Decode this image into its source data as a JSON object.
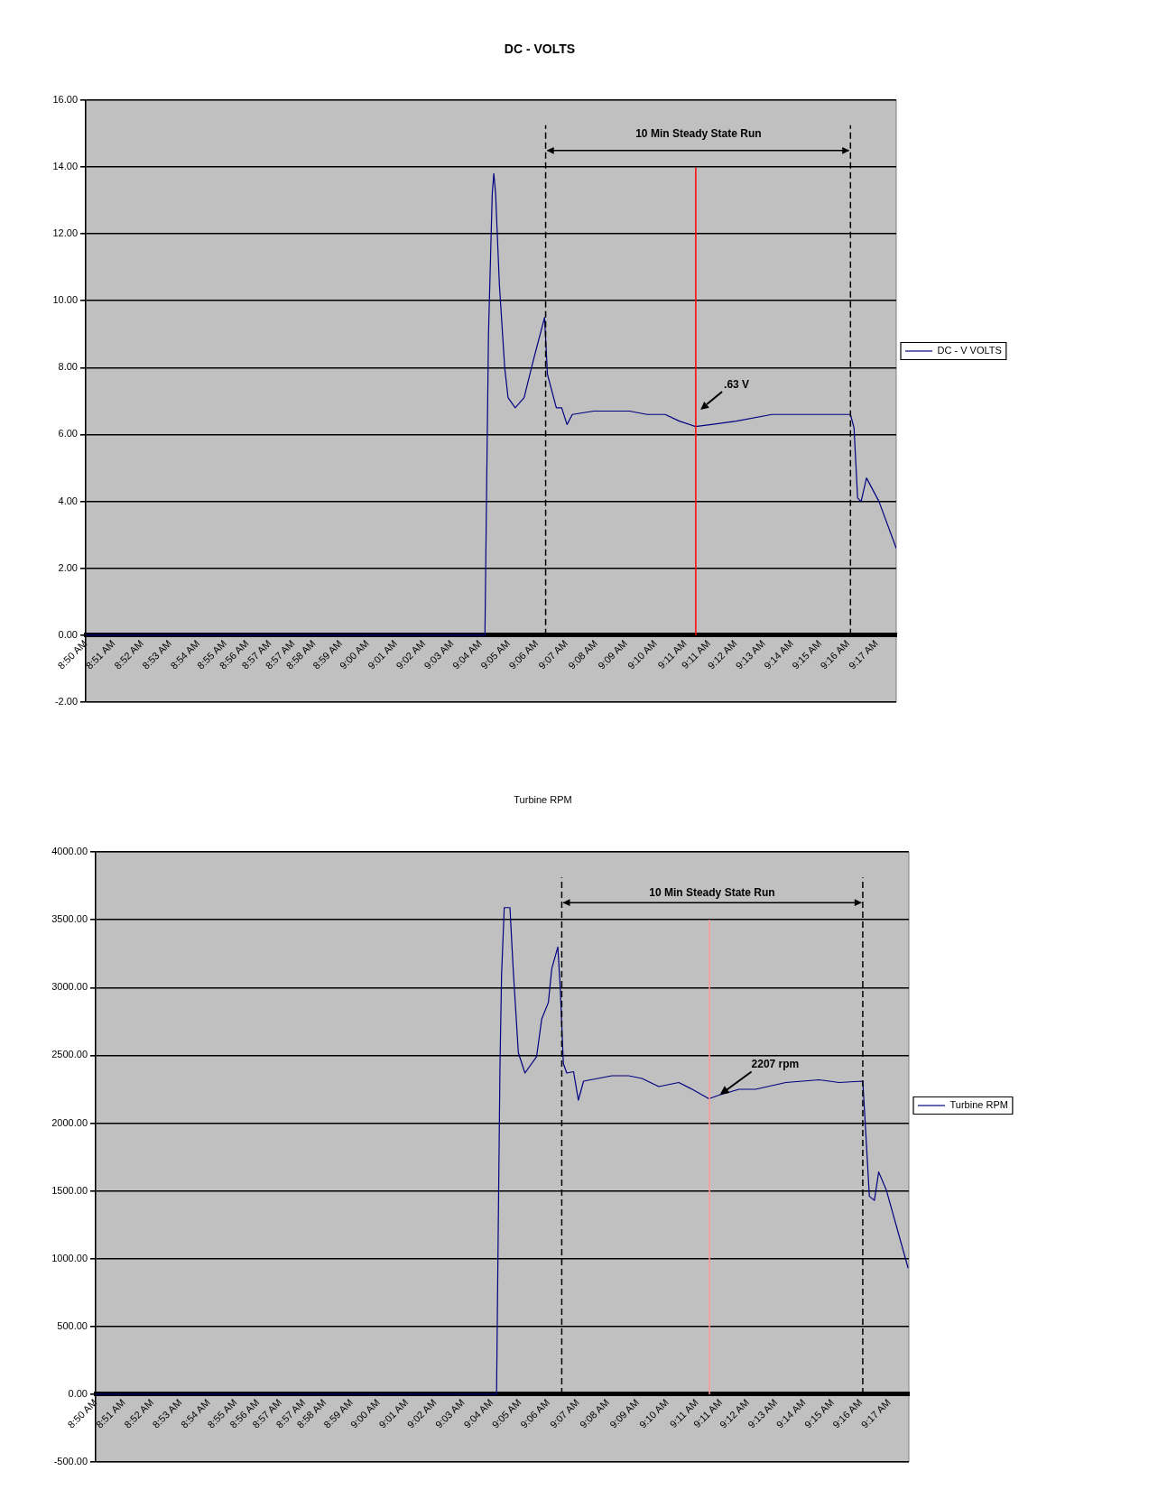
{
  "chart_data": [
    {
      "type": "line",
      "title": "DC - VOLTS",
      "x": [
        8.84,
        9.0642,
        9.0652,
        9.0662,
        9.0683,
        9.0692,
        9.0702,
        9.0723,
        9.0753,
        9.0772,
        9.0812,
        9.0862,
        9.0913,
        9.0977,
        9.0993,
        9.1043,
        9.1073,
        9.1103,
        9.1133,
        9.1253,
        9.1353,
        9.1453,
        9.1553,
        9.1654,
        9.1734,
        9.1824,
        9.1914,
        9.2054,
        9.2254,
        9.2455,
        9.2695,
        9.2715,
        9.2735,
        9.2755,
        9.2785,
        9.2855,
        9.2952
      ],
      "series": [
        {
          "name": "DC - V VOLTS",
          "color": "#000080",
          "values": [
            0,
            0,
            4.6,
            9.0,
            13.2,
            13.8,
            13.2,
            10.5,
            8.0,
            7.1,
            6.8,
            7.1,
            8.2,
            9.5,
            7.8,
            6.8,
            6.8,
            6.3,
            6.6,
            6.7,
            6.7,
            6.7,
            6.6,
            6.6,
            6.4,
            6.24,
            6.3,
            6.4,
            6.6,
            6.6,
            6.6,
            6.2,
            4.1,
            4.0,
            4.7,
            4.0,
            2.6
          ]
        }
      ],
      "xlim": [
        8.84,
        9.2952
      ],
      "xticks": [
        {
          "value": 8.84,
          "label": "8:50 AM"
        },
        {
          "value": 8.8558,
          "label": "8:51 AM"
        },
        {
          "value": 8.8717,
          "label": "8:52 AM"
        },
        {
          "value": 8.8875,
          "label": "8:53 AM"
        },
        {
          "value": 8.9033,
          "label": "8:54 AM"
        },
        {
          "value": 8.9183,
          "label": "8:55 AM"
        },
        {
          "value": 8.9308,
          "label": "8:56 AM"
        },
        {
          "value": 8.9434,
          "label": "8:57 AM"
        },
        {
          "value": 8.9566,
          "label": "8:57 AM"
        },
        {
          "value": 8.9683,
          "label": "8:58 AM"
        },
        {
          "value": 8.9833,
          "label": "8:59 AM"
        },
        {
          "value": 8.9983,
          "label": "9:00 AM"
        },
        {
          "value": 9.0142,
          "label": "9:01 AM"
        },
        {
          "value": 9.03,
          "label": "9:02 AM"
        },
        {
          "value": 9.0458,
          "label": "9:03 AM"
        },
        {
          "value": 9.0617,
          "label": "9:04 AM"
        },
        {
          "value": 9.0775,
          "label": "9:05 AM"
        },
        {
          "value": 9.0934,
          "label": "9:06 AM"
        },
        {
          "value": 9.11,
          "label": "9:07 AM"
        },
        {
          "value": 9.1267,
          "label": "9:08 AM"
        },
        {
          "value": 9.1434,
          "label": "9:09 AM"
        },
        {
          "value": 9.16,
          "label": "9:10 AM"
        },
        {
          "value": 9.1767,
          "label": "9:11 AM"
        },
        {
          "value": 9.19,
          "label": "9:11 AM"
        },
        {
          "value": 9.205,
          "label": "9:12 AM"
        },
        {
          "value": 9.2208,
          "label": "9:13 AM"
        },
        {
          "value": 9.2367,
          "label": "9:14 AM"
        },
        {
          "value": 9.2525,
          "label": "9:15 AM"
        },
        {
          "value": 9.2683,
          "label": "9:16 AM"
        },
        {
          "value": 9.2842,
          "label": "9:17 AM"
        }
      ],
      "ylim": [
        -2,
        16
      ],
      "yticks": [
        {
          "value": -2,
          "label": "-2.00"
        },
        {
          "value": 0,
          "label": "0.00"
        },
        {
          "value": 2,
          "label": "2.00"
        },
        {
          "value": 4,
          "label": "4.00"
        },
        {
          "value": 6,
          "label": "6.00"
        },
        {
          "value": 8,
          "label": "8.00"
        },
        {
          "value": 10,
          "label": "10.00"
        },
        {
          "value": 12,
          "label": "12.00"
        },
        {
          "value": 14,
          "label": "14.00"
        },
        {
          "value": 16,
          "label": "16.00"
        }
      ],
      "grid": "y",
      "legend": "right",
      "ref_lines": [
        {
          "axis": "x",
          "value": 9.0983,
          "color": "#000000",
          "line_style": "dashed"
        },
        {
          "axis": "x",
          "value": 9.2695,
          "color": "#000000",
          "line_style": "dashed"
        },
        {
          "axis": "x",
          "value": 9.1826,
          "color": "#ff0000",
          "line_style": "solid"
        }
      ],
      "annotations": [
        "10 Min Steady State Run",
        ".63 V"
      ]
    },
    {
      "type": "line",
      "title": "Turbine RPM",
      "x": [
        8.84,
        9.0644,
        9.0653,
        9.0663,
        9.0672,
        9.0687,
        9.0719,
        9.0737,
        9.0766,
        9.0803,
        9.0868,
        9.0897,
        9.0934,
        9.0953,
        9.0987,
        9.1,
        9.1018,
        9.1037,
        9.1075,
        9.1102,
        9.1131,
        9.129,
        9.1383,
        9.1458,
        9.1552,
        9.1664,
        9.1739,
        9.1833,
        9.1889,
        9.2001,
        9.2094,
        9.2263,
        9.245,
        9.2562,
        9.2694,
        9.2712,
        9.2731,
        9.2759,
        9.2783,
        9.2825,
        9.2948
      ],
      "series": [
        {
          "name": "Turbine RPM",
          "color": "#000080",
          "values": [
            0,
            0,
            1160,
            2400,
            3090,
            3590,
            3590,
            3140,
            2520,
            2370,
            2490,
            2770,
            2890,
            3140,
            3300,
            3010,
            2440,
            2370,
            2380,
            2170,
            2310,
            2350,
            2350,
            2330,
            2270,
            2300,
            2250,
            2180,
            2207,
            2250,
            2250,
            2300,
            2320,
            2300,
            2310,
            1900,
            1460,
            1430,
            1640,
            1510,
            930
          ]
        }
      ],
      "xlim": [
        8.84,
        9.2952
      ],
      "xticks": [
        {
          "value": 8.84,
          "label": "8:50 AM"
        },
        {
          "value": 8.8558,
          "label": "8:51 AM"
        },
        {
          "value": 8.8717,
          "label": "8:52 AM"
        },
        {
          "value": 8.8875,
          "label": "8:53 AM"
        },
        {
          "value": 8.9033,
          "label": "8:54 AM"
        },
        {
          "value": 8.9183,
          "label": "8:55 AM"
        },
        {
          "value": 8.9308,
          "label": "8:56 AM"
        },
        {
          "value": 8.9434,
          "label": "8:57 AM"
        },
        {
          "value": 8.9566,
          "label": "8:57 AM"
        },
        {
          "value": 8.9683,
          "label": "8:58 AM"
        },
        {
          "value": 8.9833,
          "label": "8:59 AM"
        },
        {
          "value": 8.9983,
          "label": "9:00 AM"
        },
        {
          "value": 9.0142,
          "label": "9:01 AM"
        },
        {
          "value": 9.03,
          "label": "9:02 AM"
        },
        {
          "value": 9.0458,
          "label": "9:03 AM"
        },
        {
          "value": 9.0617,
          "label": "9:04 AM"
        },
        {
          "value": 9.0775,
          "label": "9:05 AM"
        },
        {
          "value": 9.0934,
          "label": "9:06 AM"
        },
        {
          "value": 9.11,
          "label": "9:07 AM"
        },
        {
          "value": 9.1267,
          "label": "9:08 AM"
        },
        {
          "value": 9.1434,
          "label": "9:09 AM"
        },
        {
          "value": 9.16,
          "label": "9:10 AM"
        },
        {
          "value": 9.1767,
          "label": "9:11 AM"
        },
        {
          "value": 9.19,
          "label": "9:11 AM"
        },
        {
          "value": 9.205,
          "label": "9:12 AM"
        },
        {
          "value": 9.2208,
          "label": "9:13 AM"
        },
        {
          "value": 9.2367,
          "label": "9:14 AM"
        },
        {
          "value": 9.2525,
          "label": "9:15 AM"
        },
        {
          "value": 9.2683,
          "label": "9:16 AM"
        },
        {
          "value": 9.2842,
          "label": "9:17 AM"
        }
      ],
      "ylim": [
        -500,
        4000
      ],
      "yticks": [
        {
          "value": -500,
          "label": "-500.00"
        },
        {
          "value": 0,
          "label": "0.00"
        },
        {
          "value": 500,
          "label": "500.00"
        },
        {
          "value": 1000,
          "label": "1000.00"
        },
        {
          "value": 1500,
          "label": "1500.00"
        },
        {
          "value": 2000,
          "label": "2000.00"
        },
        {
          "value": 2500,
          "label": "2500.00"
        },
        {
          "value": 3000,
          "label": "3000.00"
        },
        {
          "value": 3500,
          "label": "3500.00"
        },
        {
          "value": 4000,
          "label": "4000.00"
        }
      ],
      "grid": "y",
      "legend": "right",
      "ref_lines": [
        {
          "axis": "x",
          "value": 9.1009,
          "color": "#000000",
          "line_style": "dashed"
        },
        {
          "axis": "x",
          "value": 9.2694,
          "color": "#000000",
          "line_style": "dashed"
        },
        {
          "axis": "x",
          "value": 9.1836,
          "color": "#ff9999",
          "line_style": "solid"
        }
      ],
      "annotations": [
        "10 Min Steady State Run",
        {
          "text": "2207 rpm",
          "x": 9.1889,
          "y": 2207
        }
      ]
    }
  ]
}
